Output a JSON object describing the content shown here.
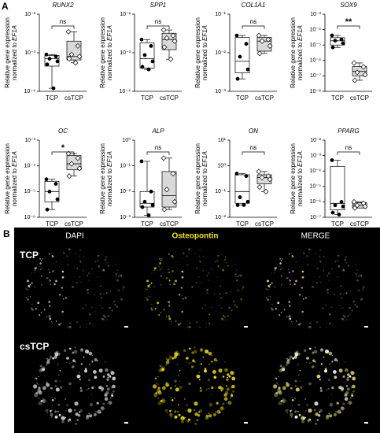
{
  "panel_labels": [
    "A",
    "B"
  ],
  "chart_data": [
    {
      "type": "box",
      "title": "RUNX2",
      "ylabel": [
        "Relative gene expression",
        "normalized to",
        "EF1A"
      ],
      "categories": [
        "TCP",
        "csTCP"
      ],
      "log": true,
      "ylim": [
        0.0001,
        0.01
      ],
      "yticks": [
        {
          "value": 0.0001,
          "label": "10⁻⁴"
        },
        {
          "value": 0.001,
          "label": "10⁻³"
        },
        {
          "value": 0.01,
          "label": "10⁻²"
        }
      ],
      "box_colors": [
        "#ffffff",
        "#d9d9d9"
      ],
      "markers": [
        "filled-circle",
        "open-diamond"
      ],
      "annotation": "ns",
      "points": [
        [
          0.0009,
          0.0008,
          0.0007,
          0.0006,
          0.0005,
          0.00012
        ],
        [
          0.0035,
          0.0015,
          0.0009,
          0.0008,
          0.0007,
          0.00055
        ]
      ],
      "boxes": [
        {
          "min": 0.00012,
          "q1": 0.00045,
          "median": 0.0007,
          "q3": 0.00085,
          "max": 0.0009
        },
        {
          "min": 0.00055,
          "q1": 0.00065,
          "median": 0.0008,
          "q3": 0.002,
          "max": 0.0035
        }
      ]
    },
    {
      "type": "box",
      "title": "SPP1",
      "ylabel": [
        "Relative gene expression",
        "normalized to",
        "EF1A"
      ],
      "categories": [
        "TCP",
        "csTCP"
      ],
      "log": true,
      "ylim": [
        0.0001,
        0.01
      ],
      "yticks": [
        {
          "value": 0.0001,
          "label": "10⁻⁴"
        },
        {
          "value": 0.001,
          "label": "10⁻³"
        },
        {
          "value": 0.01,
          "label": "10⁻²"
        }
      ],
      "box_colors": [
        "#ffffff",
        "#d9d9d9"
      ],
      "markers": [
        "filled-circle",
        "open-diamond"
      ],
      "annotation": "ns",
      "points": [
        [
          0.0022,
          0.0015,
          0.00087,
          0.0006,
          0.00043,
          0.00037
        ],
        [
          0.0039,
          0.0028,
          0.0024,
          0.002,
          0.0014,
          0.00068
        ]
      ],
      "boxes": [
        {
          "min": 0.00037,
          "q1": 0.0004,
          "median": 0.0007,
          "q3": 0.0018,
          "max": 0.0022
        },
        {
          "min": 0.00068,
          "q1": 0.0012,
          "median": 0.0022,
          "q3": 0.0032,
          "max": 0.0039
        }
      ]
    },
    {
      "type": "box",
      "title": "COL1A1",
      "ylabel": [
        "Relative gene expression",
        "normalized to",
        "EF1A"
      ],
      "categories": [
        "TCP",
        "csTCP"
      ],
      "log": true,
      "ylim": [
        0.001,
        0.1
      ],
      "yticks": [
        {
          "value": 0.001,
          "label": "10⁻³"
        },
        {
          "value": 0.01,
          "label": "10⁻²"
        },
        {
          "value": 0.1,
          "label": "10⁻¹"
        }
      ],
      "box_colors": [
        "#ffffff",
        "#d9d9d9"
      ],
      "markers": [
        "filled-circle",
        "open-diamond"
      ],
      "annotation": "ns",
      "points": [
        [
          0.028,
          0.017,
          0.0079,
          0.0037,
          0.0021
        ],
        [
          0.028,
          0.022,
          0.02,
          0.015,
          0.0096
        ]
      ],
      "boxes": [
        {
          "min": 0.0021,
          "q1": 0.003,
          "median": 0.006,
          "q3": 0.025,
          "max": 0.028
        },
        {
          "min": 0.0096,
          "q1": 0.011,
          "median": 0.02,
          "q3": 0.025,
          "max": 0.028
        }
      ]
    },
    {
      "type": "box",
      "title": "SOX9",
      "ylabel": [
        "Relative gene expression",
        "normalized to",
        "EF1A"
      ],
      "categories": [
        "TCP",
        "csTCP"
      ],
      "log": true,
      "ylim": [
        1e-08,
        0.001
      ],
      "yticks": [
        {
          "value": 1e-08,
          "label": "10⁻⁸"
        },
        {
          "value": 1e-07,
          "label": "10⁻⁷"
        },
        {
          "value": 1e-06,
          "label": "10⁻⁶"
        },
        {
          "value": 1e-05,
          "label": "10⁻⁵"
        },
        {
          "value": 0.0001,
          "label": "10⁻⁴"
        },
        {
          "value": 0.001,
          "label": "10⁻³"
        }
      ],
      "box_colors": [
        "#ffffff",
        "#d9d9d9"
      ],
      "markers": [
        "filled-circle",
        "open-diamond"
      ],
      "annotation": "**",
      "points": [
        [
          4.2e-05,
          2.3e-05,
          1.9e-05,
          1.3e-05,
          7e-06
        ],
        [
          6.9e-07,
          3.8e-07,
          1.7e-07,
          1.2e-07,
          5.2e-08
        ]
      ],
      "boxes": [
        {
          "min": 7e-06,
          "q1": 1e-05,
          "median": 1.9e-05,
          "q3": 3e-05,
          "max": 4.2e-05
        },
        {
          "min": 5.2e-08,
          "q1": 1e-07,
          "median": 2e-07,
          "q3": 4e-07,
          "max": 6.9e-07
        }
      ]
    },
    {
      "type": "box",
      "title": "OC",
      "ylabel": [
        "Relative gene expression",
        "normalized to",
        "EF1A"
      ],
      "categories": [
        "TCP",
        "csTCP"
      ],
      "log": true,
      "ylim": [
        1e-06,
        0.001
      ],
      "yticks": [
        {
          "value": 1e-06,
          "label": "10⁻⁶"
        },
        {
          "value": 1e-05,
          "label": "10⁻⁵"
        },
        {
          "value": 0.0001,
          "label": "10⁻⁴"
        },
        {
          "value": 0.001,
          "label": "10⁻³"
        }
      ],
      "box_colors": [
        "#ffffff",
        "#d9d9d9"
      ],
      "markers": [
        "filled-circle",
        "open-diamond"
      ],
      "annotation": "*",
      "points": [
        [
          3e-05,
          2e-05,
          1e-05,
          5e-06,
          2e-06
        ],
        [
          0.0003,
          0.0002,
          0.00012,
          8e-05,
          4e-05
        ]
      ],
      "boxes": [
        {
          "min": 2e-06,
          "q1": 4e-06,
          "median": 1e-05,
          "q3": 2.5e-05,
          "max": 3e-05
        },
        {
          "min": 4e-05,
          "q1": 7e-05,
          "median": 0.00012,
          "q3": 0.00025,
          "max": 0.0003
        }
      ]
    },
    {
      "type": "box",
      "title": "ALP",
      "ylabel": [
        "Relative gene expression",
        "normalized to",
        "EF1A"
      ],
      "categories": [
        "TCP",
        "csTCP"
      ],
      "log": true,
      "ylim": [
        0.001,
        1
      ],
      "yticks": [
        {
          "value": 0.001,
          "label": "10⁻³"
        },
        {
          "value": 0.01,
          "label": "10⁻²"
        },
        {
          "value": 0.1,
          "label": "10⁻¹"
        },
        {
          "value": 1,
          "label": "10⁰"
        }
      ],
      "box_colors": [
        "#ffffff",
        "#d9d9d9"
      ],
      "markers": [
        "filled-circle",
        "open-diamond"
      ],
      "annotation": "ns",
      "points": [
        [
          0.15,
          0.01,
          0.004,
          0.003,
          0.0025,
          0.0012
        ],
        [
          0.2,
          0.05,
          0.012,
          0.004,
          0.002
        ]
      ],
      "boxes": [
        {
          "min": 0.0012,
          "q1": 0.0025,
          "median": 0.0035,
          "q3": 0.01,
          "max": 0.15
        },
        {
          "min": 0.002,
          "q1": 0.0025,
          "median": 0.007,
          "q3": 0.06,
          "max": 0.2
        }
      ]
    },
    {
      "type": "box",
      "title": "ON",
      "ylabel": [
        "Relative gene expression",
        "normalized to",
        "EF1A"
      ],
      "categories": [
        "TCP",
        "csTCP"
      ],
      "log": true,
      "ylim": [
        0.01,
        10
      ],
      "yticks": [
        {
          "value": 0.01,
          "label": "10⁻²"
        },
        {
          "value": 0.1,
          "label": "10⁻¹"
        },
        {
          "value": 1,
          "label": "10⁰"
        },
        {
          "value": 10,
          "label": "10¹"
        }
      ],
      "box_colors": [
        "#ffffff",
        "#d9d9d9"
      ],
      "markers": [
        "filled-circle",
        "open-diamond"
      ],
      "annotation": "ns",
      "points": [
        [
          0.5,
          0.4,
          0.06,
          0.04,
          0.03,
          0.03
        ],
        [
          0.6,
          0.4,
          0.35,
          0.3,
          0.15,
          0.1
        ]
      ],
      "boxes": [
        {
          "min": 0.03,
          "q1": 0.035,
          "median": 0.1,
          "q3": 0.45,
          "max": 0.5
        },
        {
          "min": 0.1,
          "q1": 0.2,
          "median": 0.35,
          "q3": 0.45,
          "max": 0.6
        }
      ]
    },
    {
      "type": "box",
      "title": "PPARG",
      "ylabel": [
        "Relative gene expression",
        "normalized to",
        "EF1A"
      ],
      "categories": [
        "TCP",
        "csTCP"
      ],
      "log": true,
      "ylim": [
        1e-07,
        0.01
      ],
      "yticks": [
        {
          "value": 1e-07,
          "label": "10⁻⁷"
        },
        {
          "value": 1e-06,
          "label": "10⁻⁶"
        },
        {
          "value": 1e-05,
          "label": "10⁻⁵"
        },
        {
          "value": 0.0001,
          "label": "10⁻⁴"
        },
        {
          "value": 0.001,
          "label": "10⁻³"
        },
        {
          "value": 0.01,
          "label": "10⁻²"
        }
      ],
      "box_colors": [
        "#ffffff",
        "#d9d9d9"
      ],
      "markers": [
        "filled-circle",
        "open-diamond"
      ],
      "annotation": "ns",
      "points": [
        [
          0.0005,
          1e-06,
          6e-07,
          5e-07,
          2e-07,
          1.5e-07
        ],
        [
          1e-06,
          8e-07,
          6e-07,
          5e-07,
          4e-07
        ]
      ],
      "boxes": [
        {
          "min": 1.5e-07,
          "q1": 3e-07,
          "median": 8e-07,
          "q3": 0.0002,
          "max": 0.0005
        },
        {
          "min": 4e-07,
          "q1": 4e-07,
          "median": 6e-07,
          "q3": 9e-07,
          "max": 1e-06
        }
      ]
    }
  ],
  "image_panel": {
    "columns": [
      "DAPI",
      "Osteopontin",
      "MERGE"
    ],
    "rows": [
      "TCP",
      "csTCP"
    ]
  }
}
